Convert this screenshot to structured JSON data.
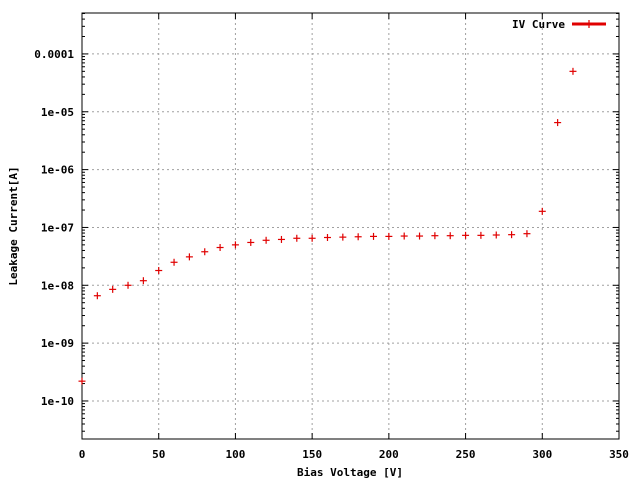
{
  "chart_data": {
    "type": "scatter",
    "xlabel": "Bias Voltage [V]",
    "ylabel": "Leakage Current[A]",
    "xlim": [
      0,
      350
    ],
    "ylim": [
      2.2e-11,
      0.00051
    ],
    "y_scale": "log",
    "grid": true,
    "legend_position": "top-right",
    "x_ticks": [
      0,
      50,
      100,
      150,
      200,
      250,
      300,
      350
    ],
    "x_tick_labels": [
      "0",
      "50",
      "100",
      "150",
      "200",
      "250",
      "300",
      "350"
    ],
    "y_ticks": [
      1e-10,
      1e-09,
      1e-08,
      1e-07,
      1e-06,
      1e-05,
      0.0001
    ],
    "y_tick_labels": [
      "1e-10",
      "1e-09",
      "1e-08",
      "1e-07",
      "1e-06",
      "1e-05",
      "0.0001"
    ],
    "colors": {
      "series": "#e00000",
      "grid": "#a0a0a0"
    },
    "series": [
      {
        "name": "IV Curve",
        "x": [
          0,
          10,
          20,
          30,
          40,
          50,
          60,
          70,
          80,
          90,
          100,
          110,
          120,
          130,
          140,
          150,
          160,
          170,
          180,
          190,
          200,
          210,
          220,
          230,
          240,
          250,
          260,
          270,
          280,
          290,
          300,
          310,
          320
        ],
        "y": [
          2.2e-10,
          6.6e-09,
          8.5e-09,
          1e-08,
          1.2e-08,
          1.8e-08,
          2.5e-08,
          3.1e-08,
          3.8e-08,
          4.5e-08,
          5e-08,
          5.5e-08,
          6e-08,
          6.2e-08,
          6.5e-08,
          6.5e-08,
          6.7e-08,
          6.8e-08,
          6.9e-08,
          7e-08,
          7e-08,
          7.1e-08,
          7.1e-08,
          7.2e-08,
          7.2e-08,
          7.3e-08,
          7.3e-08,
          7.4e-08,
          7.5e-08,
          7.8e-08,
          1.9e-07,
          6.5e-06,
          5e-05
        ]
      }
    ]
  }
}
